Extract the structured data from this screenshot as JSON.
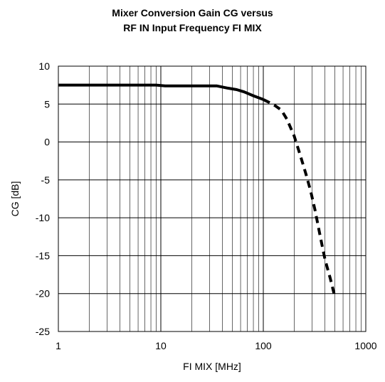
{
  "chart_data": {
    "type": "line",
    "title_lines": [
      "Mixer Conversion Gain CG versus",
      "RF IN Input Frequency FI MIX"
    ],
    "xlabel": "FI MIX [MHz]",
    "ylabel": "CG [dB]",
    "xscale": "log",
    "xlim": [
      1,
      1000
    ],
    "ylim": [
      -25,
      10
    ],
    "xticks": [
      1,
      10,
      100,
      1000
    ],
    "xtick_labels": [
      "1",
      "10",
      "100",
      "1000"
    ],
    "yticks": [
      10,
      5,
      0,
      -5,
      -10,
      -15,
      -20,
      -25
    ],
    "ytick_labels": [
      "10",
      "5",
      "0",
      "-5",
      "-10",
      "-15",
      "-20",
      "-25"
    ],
    "grid": true,
    "series": [
      {
        "style": "solid",
        "x": [
          1,
          5,
          9,
          11,
          20,
          30,
          35,
          45,
          55,
          65,
          80,
          100
        ],
        "y": [
          7.5,
          7.5,
          7.5,
          7.4,
          7.4,
          7.4,
          7.4,
          7.1,
          6.9,
          6.6,
          6.1,
          5.6
        ]
      },
      {
        "style": "dashed",
        "x": [
          100,
          115,
          130,
          150,
          170,
          200,
          230,
          260,
          290,
          320,
          360,
          400,
          450,
          500
        ],
        "y": [
          5.6,
          5.2,
          4.8,
          4.2,
          3.0,
          0.8,
          -1.8,
          -4.2,
          -6.5,
          -9.0,
          -12.5,
          -15.5,
          -18.0,
          -20.5
        ]
      }
    ]
  }
}
